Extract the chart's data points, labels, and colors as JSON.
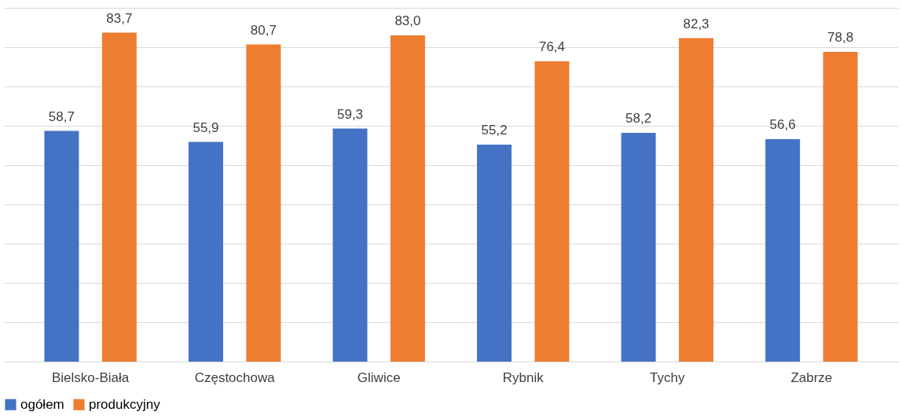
{
  "chart_data": {
    "type": "bar",
    "categories": [
      "Bielsko-Biała",
      "Częstochowa",
      "Gliwice",
      "Rybnik",
      "Tychy",
      "Zabrze"
    ],
    "series": [
      {
        "name": "ogółem",
        "color": "#4472c4",
        "values": [
          58.7,
          55.9,
          59.3,
          55.2,
          58.2,
          56.6
        ],
        "value_labels": [
          "58,7",
          "55,9",
          "59,3",
          "55,2",
          "58,2",
          "56,6"
        ]
      },
      {
        "name": "produkcyjny",
        "color": "#ed7d31",
        "values": [
          83.7,
          80.7,
          83.0,
          76.4,
          82.3,
          78.8
        ],
        "value_labels": [
          "83,7",
          "80,7",
          "83,0",
          "76,4",
          "82,3",
          "78,8"
        ]
      }
    ],
    "ylim": [
      0,
      90
    ],
    "yticks": [
      {
        "value": 0,
        "label": null
      },
      {
        "value": 10,
        "label": null
      },
      {
        "value": 20,
        "label": null
      },
      {
        "value": 30,
        "label": null
      },
      {
        "value": 40,
        "label": null
      },
      {
        "value": 50,
        "label": null
      },
      {
        "value": 60,
        "label": null
      },
      {
        "value": 70,
        "label": null
      },
      {
        "value": 80,
        "label": null
      },
      {
        "value": 90,
        "label": null
      }
    ],
    "tick_labels": "x",
    "grid": "y",
    "legend": "bottom"
  }
}
